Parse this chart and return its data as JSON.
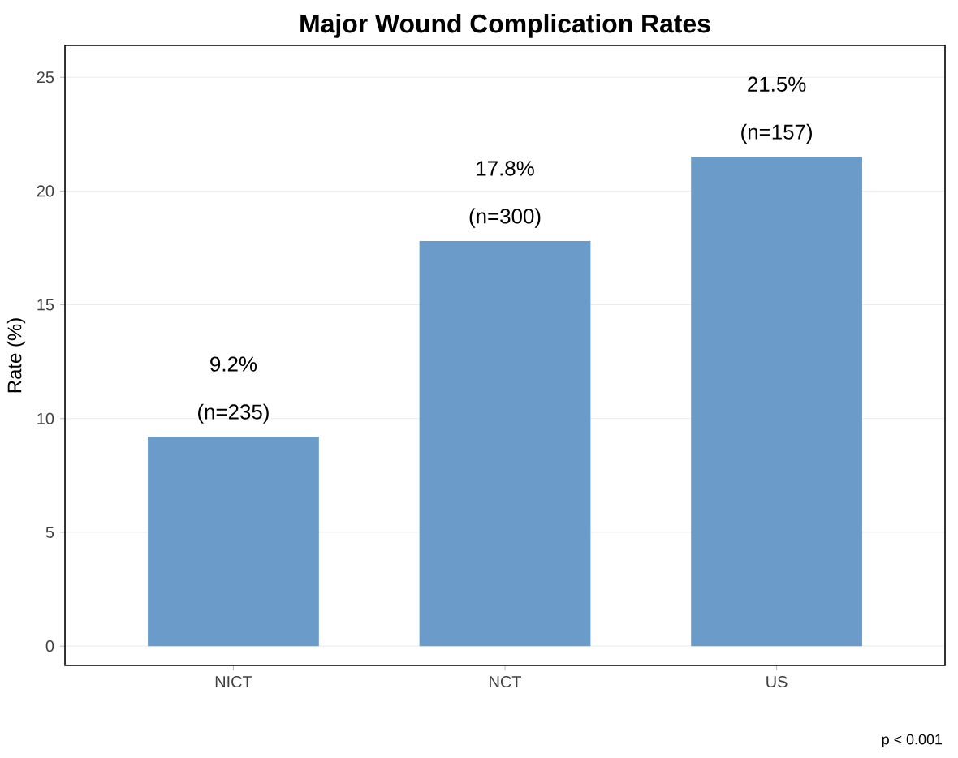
{
  "chart_data": {
    "type": "bar",
    "title": "Major Wound Complication Rates",
    "ylabel": "Rate (%)",
    "categories": [
      "NICT",
      "NCT",
      "US"
    ],
    "values": [
      9.2,
      17.8,
      21.5
    ],
    "value_labels": [
      "9.2%",
      "17.8%",
      "21.5%"
    ],
    "color": "#6a9bc9",
    "ylim": [
      -0.85,
      26.4
    ],
    "yticks": [
      0,
      5,
      10,
      15,
      20,
      25
    ],
    "grid": "y",
    "annotations": [
      {
        "text": "(n=235)",
        "x": "NICT",
        "y": 9.2
      },
      {
        "text": "(n=300)",
        "x": "NCT",
        "y": 17.8
      },
      {
        "text": "(n=157)",
        "x": "US",
        "y": 21.5
      },
      "p < 0.001"
    ]
  }
}
